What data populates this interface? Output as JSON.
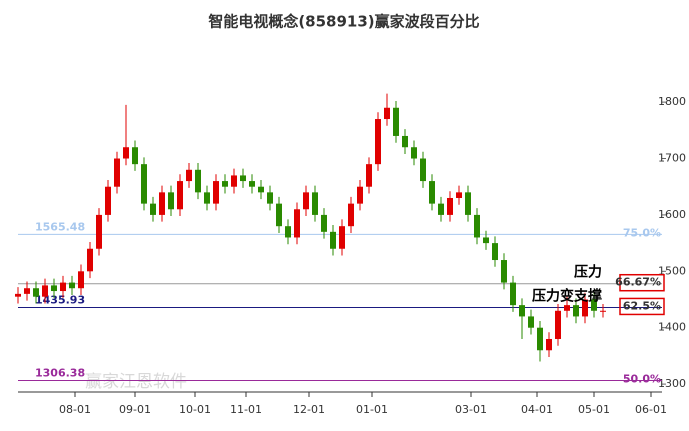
{
  "chart_data": {
    "type": "candlestick",
    "title": "智能电视概念(858913)赢家波段百分比",
    "watermark": "赢家江恩软件",
    "up_color": "#e00000",
    "down_color": "#2a8a00",
    "x": [
      0,
      3,
      6,
      9,
      12,
      15,
      18,
      21,
      24,
      27,
      30,
      33,
      36,
      39,
      42,
      45,
      48,
      51,
      54,
      57,
      60,
      63,
      66,
      69,
      72,
      75,
      78,
      81,
      84,
      87,
      90,
      93,
      96,
      99,
      102,
      105,
      108,
      111,
      114,
      117,
      120,
      123,
      126,
      129,
      132,
      135,
      138,
      141,
      144,
      147,
      150,
      153,
      156,
      159,
      162,
      165,
      168,
      171,
      174,
      177,
      180,
      183,
      186,
      189,
      192,
      195
    ],
    "open": [
      1455,
      1460,
      1470,
      1455,
      1475,
      1465,
      1480,
      1470,
      1500,
      1540,
      1600,
      1650,
      1700,
      1720,
      1690,
      1620,
      1600,
      1640,
      1610,
      1660,
      1680,
      1640,
      1620,
      1660,
      1650,
      1670,
      1660,
      1650,
      1640,
      1620,
      1580,
      1560,
      1610,
      1640,
      1600,
      1570,
      1540,
      1580,
      1620,
      1650,
      1690,
      1770,
      1790,
      1740,
      1720,
      1700,
      1660,
      1620,
      1600,
      1630,
      1640,
      1600,
      1560,
      1550,
      1520,
      1480,
      1440,
      1420,
      1400,
      1360,
      1380,
      1430,
      1440,
      1420,
      1450,
      1430
    ],
    "high": [
      1472,
      1482,
      1482,
      1487,
      1487,
      1492,
      1492,
      1512,
      1552,
      1612,
      1662,
      1712,
      1795,
      1732,
      1702,
      1632,
      1652,
      1652,
      1672,
      1692,
      1692,
      1652,
      1672,
      1672,
      1682,
      1682,
      1672,
      1662,
      1652,
      1632,
      1592,
      1622,
      1652,
      1652,
      1612,
      1582,
      1592,
      1632,
      1662,
      1702,
      1782,
      1815,
      1802,
      1752,
      1732,
      1712,
      1672,
      1632,
      1642,
      1652,
      1652,
      1612,
      1572,
      1562,
      1532,
      1492,
      1452,
      1432,
      1412,
      1392,
      1442,
      1455,
      1452,
      1462,
      1462,
      1442
    ],
    "low": [
      1443,
      1448,
      1443,
      1443,
      1453,
      1453,
      1458,
      1458,
      1488,
      1528,
      1588,
      1638,
      1688,
      1678,
      1608,
      1588,
      1588,
      1598,
      1598,
      1648,
      1628,
      1608,
      1608,
      1638,
      1638,
      1648,
      1638,
      1628,
      1608,
      1568,
      1548,
      1548,
      1598,
      1588,
      1558,
      1528,
      1528,
      1568,
      1608,
      1638,
      1678,
      1758,
      1728,
      1708,
      1688,
      1648,
      1608,
      1588,
      1588,
      1618,
      1588,
      1548,
      1538,
      1508,
      1468,
      1428,
      1380,
      1388,
      1340,
      1348,
      1368,
      1418,
      1408,
      1408,
      1418,
      1418
    ],
    "close": [
      1460,
      1470,
      1455,
      1475,
      1465,
      1480,
      1470,
      1500,
      1540,
      1600,
      1650,
      1700,
      1720,
      1690,
      1620,
      1600,
      1640,
      1610,
      1660,
      1680,
      1640,
      1620,
      1660,
      1650,
      1670,
      1660,
      1650,
      1640,
      1620,
      1580,
      1560,
      1610,
      1640,
      1600,
      1570,
      1540,
      1580,
      1620,
      1650,
      1690,
      1770,
      1790,
      1740,
      1720,
      1700,
      1660,
      1620,
      1600,
      1630,
      1640,
      1600,
      1560,
      1550,
      1520,
      1480,
      1440,
      1420,
      1400,
      1360,
      1380,
      1430,
      1440,
      1420,
      1450,
      1430,
      1430
    ],
    "xlim": [
      0,
      214
    ],
    "xticks": [
      {
        "value": 19,
        "label": "08-01"
      },
      {
        "value": 39,
        "label": "09-01"
      },
      {
        "value": 59,
        "label": "10-01"
      },
      {
        "value": 76,
        "label": "11-01"
      },
      {
        "value": 97,
        "label": "12-01"
      },
      {
        "value": 118,
        "label": "01-01"
      },
      {
        "value": 151,
        "label": "03-01"
      },
      {
        "value": 173,
        "label": "04-01"
      },
      {
        "value": 192,
        "label": "05-01"
      },
      {
        "value": 211,
        "label": "06-01"
      }
    ],
    "ylim": [
      1286,
      1919
    ],
    "yticks": [
      1300,
      1400,
      1500,
      1600,
      1700,
      1800
    ],
    "levels": [
      {
        "value": 1565.48,
        "pct": "75.0%",
        "color": "#a8c8ee",
        "shown": true
      },
      {
        "value": 1478,
        "pct": "66.67%",
        "color": "#999999",
        "boxed": true,
        "note": "压力"
      },
      {
        "value": 1435.93,
        "pct": "62.5%",
        "color": "#1a1a80",
        "shown": true,
        "boxed": true,
        "note": "压力变支撑"
      },
      {
        "value": 1306.38,
        "pct": "50.0%",
        "color": "#9a2a9a",
        "shown": true
      }
    ]
  }
}
